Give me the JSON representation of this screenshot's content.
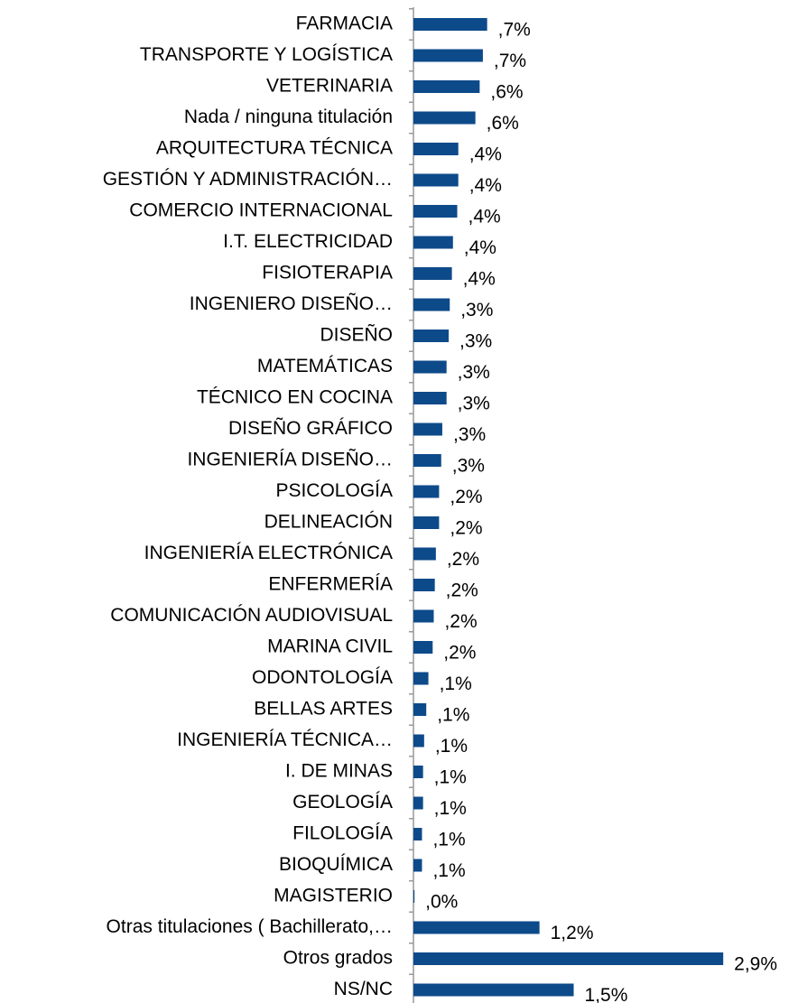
{
  "chart_data": {
    "type": "bar",
    "orientation": "horizontal",
    "color": "#0d4a8a",
    "categories": [
      "FARMACIA",
      "TRANSPORTE Y LOGÍSTICA",
      "VETERINARIA",
      "Nada / ninguna titulación",
      "ARQUITECTURA TÉCNICA",
      "GESTIÓN Y ADMINISTRACIÓN…",
      "COMERCIO INTERNACIONAL",
      "I.T. ELECTRICIDAD",
      "FISIOTERAPIA",
      "INGENIERO DISEÑO…",
      "DISEÑO",
      "MATEMÁTICAS",
      "TÉCNICO EN COCINA",
      "DISEÑO GRÁFICO",
      "INGENIERÍA DISEÑO…",
      "PSICOLOGÍA",
      "DELINEACIÓN",
      "INGENIERÍA ELECTRÓNICA",
      "ENFERMERÍA",
      "COMUNICACIÓN AUDIOVISUAL",
      "MARINA CIVIL",
      "ODONTOLOGÍA",
      "BELLAS ARTES",
      "INGENIERÍA TÉCNICA…",
      "I. DE MINAS",
      "GEOLOGÍA",
      "FILOLOGÍA",
      "BIOQUÍMICA",
      "MAGISTERIO",
      "Otras titulaciones ( Bachillerato,…",
      "Otros grados",
      "NS/NC"
    ],
    "values": [
      0.69,
      0.65,
      0.62,
      0.58,
      0.42,
      0.42,
      0.41,
      0.37,
      0.36,
      0.34,
      0.33,
      0.31,
      0.31,
      0.27,
      0.26,
      0.24,
      0.24,
      0.21,
      0.2,
      0.19,
      0.18,
      0.14,
      0.12,
      0.1,
      0.09,
      0.09,
      0.08,
      0.08,
      0.01,
      1.18,
      2.9,
      1.5
    ],
    "value_labels": [
      ",7%",
      ",7%",
      ",6%",
      ",6%",
      ",4%",
      ",4%",
      ",4%",
      ",4%",
      ",4%",
      ",3%",
      ",3%",
      ",3%",
      ",3%",
      ",3%",
      ",3%",
      ",2%",
      ",2%",
      ",2%",
      ",2%",
      ",2%",
      ",2%",
      ",1%",
      ",1%",
      ",1%",
      ",1%",
      ",1%",
      ",1%",
      ",1%",
      ",0%",
      "1,2%",
      "2,9%",
      "1,5%"
    ],
    "xlim": [
      0,
      3.6
    ]
  }
}
